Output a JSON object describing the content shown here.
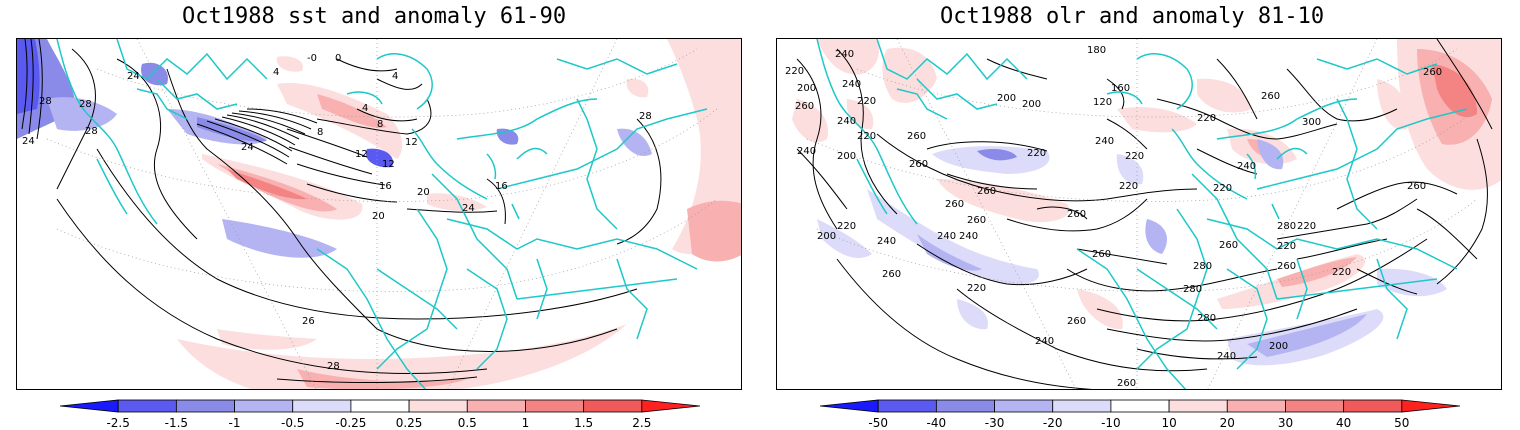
{
  "panels": [
    {
      "title": "Oct1988 sst and anomaly 61-90",
      "contour_labels": [
        "28",
        "28",
        "24",
        "28",
        "24",
        "4",
        "-0",
        "0",
        "4",
        "8",
        "8",
        "4",
        "12",
        "12",
        "12",
        "16",
        "20",
        "20",
        "24",
        "16",
        "24",
        "28",
        "26",
        "28",
        "28"
      ],
      "colorbar": {
        "ticks": [
          "-2.5",
          "-1.5",
          "-1",
          "-0.5",
          "-0.25",
          "0.25",
          "0.5",
          "1",
          "1.5",
          "2.5"
        ],
        "colors": [
          "#1a1aff",
          "#5a5af0",
          "#8a8ae8",
          "#b4b4f2",
          "#dcdcfa",
          "#ffffff",
          "#fcdede",
          "#f8b0b0",
          "#f48484",
          "#f05a5a",
          "#ff2020"
        ]
      }
    },
    {
      "title": "Oct1988 olr and anomaly 81-10",
      "contour_labels": [
        "240",
        "180",
        "220",
        "200",
        "240",
        "220",
        "240",
        "260",
        "260",
        "220",
        "240",
        "200",
        "200",
        "160",
        "120",
        "200",
        "200",
        "220",
        "240",
        "220",
        "260",
        "260",
        "300",
        "260",
        "260",
        "220",
        "220",
        "240",
        "220",
        "260",
        "260",
        "260",
        "240",
        "220",
        "240",
        "200",
        "220",
        "240",
        "260",
        "260",
        "280",
        "260",
        "220",
        "280",
        "260",
        "260",
        "280",
        "220",
        "220",
        "260",
        "280",
        "200",
        "240",
        "240",
        "260"
      ],
      "colorbar": {
        "ticks": [
          "-50",
          "-40",
          "-30",
          "-20",
          "-10",
          "10",
          "20",
          "30",
          "40",
          "50"
        ],
        "colors": [
          "#1a1aff",
          "#5a5af0",
          "#8a8ae8",
          "#b4b4f2",
          "#dcdcfa",
          "#ffffff",
          "#fcdede",
          "#f8b0b0",
          "#f48484",
          "#f05a5a",
          "#ff2020"
        ]
      }
    }
  ]
}
